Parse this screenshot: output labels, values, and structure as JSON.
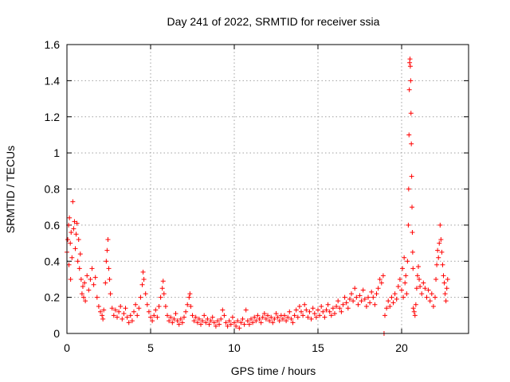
{
  "chart_data": {
    "type": "scatter",
    "title": "Day 241 of 2022, SRMTID for receiver ssia",
    "xlabel": "GPS time / hours",
    "ylabel": "SRMTID / TECUs",
    "xlim": [
      0,
      24
    ],
    "ylim": [
      0,
      1.6
    ],
    "xticks": [
      0,
      5,
      10,
      15,
      20
    ],
    "xtick_labels": [
      "0",
      "5",
      "10",
      "15",
      "20"
    ],
    "yticks": [
      0,
      0.2,
      0.4,
      0.6,
      0.8,
      1,
      1.2,
      1.4,
      1.6
    ],
    "ytick_labels": [
      "0",
      "0.2",
      "0.4",
      "0.6",
      "0.8",
      "1",
      "1.2",
      "1.4",
      "1.6"
    ],
    "grid": true,
    "marker": "+",
    "color": "#ff0000",
    "series": [
      {
        "name": "SRMTID",
        "points": [
          [
            0.0,
            0.45
          ],
          [
            0.05,
            0.52
          ],
          [
            0.1,
            0.6
          ],
          [
            0.12,
            0.38
          ],
          [
            0.15,
            0.64
          ],
          [
            0.2,
            0.5
          ],
          [
            0.22,
            0.3
          ],
          [
            0.25,
            0.56
          ],
          [
            0.3,
            0.42
          ],
          [
            0.35,
            0.73
          ],
          [
            0.4,
            0.58
          ],
          [
            0.45,
            0.62
          ],
          [
            0.5,
            0.47
          ],
          [
            0.55,
            0.55
          ],
          [
            0.6,
            0.61
          ],
          [
            0.65,
            0.4
          ],
          [
            0.7,
            0.52
          ],
          [
            0.75,
            0.36
          ],
          [
            0.8,
            0.44
          ],
          [
            0.85,
            0.3
          ],
          [
            0.9,
            0.22
          ],
          [
            0.95,
            0.26
          ],
          [
            1.0,
            0.2
          ],
          [
            1.05,
            0.28
          ],
          [
            1.1,
            0.18
          ],
          [
            1.2,
            0.32
          ],
          [
            1.3,
            0.24
          ],
          [
            1.4,
            0.3
          ],
          [
            1.5,
            0.36
          ],
          [
            1.6,
            0.27
          ],
          [
            1.7,
            0.31
          ],
          [
            1.8,
            0.2
          ],
          [
            1.9,
            0.15
          ],
          [
            2.0,
            0.12
          ],
          [
            2.1,
            0.1
          ],
          [
            2.15,
            0.08
          ],
          [
            2.2,
            0.13
          ],
          [
            2.3,
            0.28
          ],
          [
            2.35,
            0.4
          ],
          [
            2.4,
            0.46
          ],
          [
            2.45,
            0.52
          ],
          [
            2.5,
            0.36
          ],
          [
            2.55,
            0.3
          ],
          [
            2.6,
            0.22
          ],
          [
            2.7,
            0.14
          ],
          [
            2.8,
            0.1
          ],
          [
            2.9,
            0.13
          ],
          [
            3.0,
            0.09
          ],
          [
            3.1,
            0.12
          ],
          [
            3.2,
            0.15
          ],
          [
            3.3,
            0.08
          ],
          [
            3.4,
            0.11
          ],
          [
            3.5,
            0.14
          ],
          [
            3.6,
            0.09
          ],
          [
            3.7,
            0.06
          ],
          [
            3.8,
            0.1
          ],
          [
            3.9,
            0.07
          ],
          [
            4.0,
            0.12
          ],
          [
            4.1,
            0.16
          ],
          [
            4.2,
            0.1
          ],
          [
            4.3,
            0.14
          ],
          [
            4.4,
            0.2
          ],
          [
            4.5,
            0.27
          ],
          [
            4.55,
            0.34
          ],
          [
            4.6,
            0.3
          ],
          [
            4.7,
            0.22
          ],
          [
            4.8,
            0.16
          ],
          [
            4.9,
            0.12
          ],
          [
            5.0,
            0.09
          ],
          [
            5.1,
            0.07
          ],
          [
            5.2,
            0.1
          ],
          [
            5.3,
            0.13
          ],
          [
            5.4,
            0.09
          ],
          [
            5.5,
            0.15
          ],
          [
            5.6,
            0.2
          ],
          [
            5.7,
            0.25
          ],
          [
            5.75,
            0.29
          ],
          [
            5.8,
            0.22
          ],
          [
            5.9,
            0.15
          ],
          [
            6.0,
            0.1
          ],
          [
            6.1,
            0.07
          ],
          [
            6.2,
            0.09
          ],
          [
            6.3,
            0.06
          ],
          [
            6.4,
            0.08
          ],
          [
            6.5,
            0.11
          ],
          [
            6.6,
            0.07
          ],
          [
            6.7,
            0.05
          ],
          [
            6.8,
            0.08
          ],
          [
            6.9,
            0.06
          ],
          [
            7.0,
            0.09
          ],
          [
            7.1,
            0.12
          ],
          [
            7.2,
            0.16
          ],
          [
            7.3,
            0.2
          ],
          [
            7.35,
            0.22
          ],
          [
            7.4,
            0.15
          ],
          [
            7.5,
            0.1
          ],
          [
            7.6,
            0.07
          ],
          [
            7.7,
            0.09
          ],
          [
            7.8,
            0.06
          ],
          [
            7.9,
            0.08
          ],
          [
            8.0,
            0.05
          ],
          [
            8.1,
            0.07
          ],
          [
            8.2,
            0.1
          ],
          [
            8.3,
            0.06
          ],
          [
            8.4,
            0.08
          ],
          [
            8.5,
            0.05
          ],
          [
            8.6,
            0.07
          ],
          [
            8.7,
            0.09
          ],
          [
            8.8,
            0.06
          ],
          [
            8.9,
            0.04
          ],
          [
            9.0,
            0.07
          ],
          [
            9.1,
            0.05
          ],
          [
            9.2,
            0.08
          ],
          [
            9.3,
            0.13
          ],
          [
            9.4,
            0.1
          ],
          [
            9.5,
            0.06
          ],
          [
            9.6,
            0.04
          ],
          [
            9.7,
            0.07
          ],
          [
            9.8,
            0.05
          ],
          [
            9.9,
            0.09
          ],
          [
            10.0,
            0.06
          ],
          [
            10.1,
            0.04
          ],
          [
            10.2,
            0.07
          ],
          [
            10.3,
            0.03
          ],
          [
            10.4,
            0.06
          ],
          [
            10.5,
            0.08
          ],
          [
            10.6,
            0.05
          ],
          [
            10.7,
            0.13
          ],
          [
            10.8,
            0.07
          ],
          [
            10.9,
            0.05
          ],
          [
            11.0,
            0.08
          ],
          [
            11.1,
            0.06
          ],
          [
            11.2,
            0.09
          ],
          [
            11.3,
            0.07
          ],
          [
            11.4,
            0.1
          ],
          [
            11.5,
            0.08
          ],
          [
            11.6,
            0.06
          ],
          [
            11.7,
            0.09
          ],
          [
            11.8,
            0.11
          ],
          [
            11.9,
            0.08
          ],
          [
            12.0,
            0.1
          ],
          [
            12.1,
            0.07
          ],
          [
            12.2,
            0.09
          ],
          [
            12.3,
            0.06
          ],
          [
            12.4,
            0.08
          ],
          [
            12.5,
            0.11
          ],
          [
            12.6,
            0.09
          ],
          [
            12.7,
            0.07
          ],
          [
            12.8,
            0.1
          ],
          [
            12.9,
            0.08
          ],
          [
            13.0,
            0.1
          ],
          [
            13.1,
            0.07
          ],
          [
            13.2,
            0.09
          ],
          [
            13.3,
            0.12
          ],
          [
            13.4,
            0.08
          ],
          [
            13.5,
            0.06
          ],
          [
            13.6,
            0.1
          ],
          [
            13.7,
            0.13
          ],
          [
            13.8,
            0.09
          ],
          [
            13.9,
            0.15
          ],
          [
            14.0,
            0.12
          ],
          [
            14.1,
            0.1
          ],
          [
            14.2,
            0.16
          ],
          [
            14.3,
            0.13
          ],
          [
            14.4,
            0.09
          ],
          [
            14.5,
            0.12
          ],
          [
            14.6,
            0.08
          ],
          [
            14.7,
            0.14
          ],
          [
            14.8,
            0.11
          ],
          [
            14.9,
            0.09
          ],
          [
            15.0,
            0.13
          ],
          [
            15.1,
            0.1
          ],
          [
            15.2,
            0.15
          ],
          [
            15.3,
            0.12
          ],
          [
            15.4,
            0.09
          ],
          [
            15.5,
            0.13
          ],
          [
            15.6,
            0.16
          ],
          [
            15.7,
            0.12
          ],
          [
            15.8,
            0.1
          ],
          [
            15.9,
            0.14
          ],
          [
            16.0,
            0.11
          ],
          [
            16.1,
            0.15
          ],
          [
            16.2,
            0.18
          ],
          [
            16.3,
            0.14
          ],
          [
            16.4,
            0.12
          ],
          [
            16.5,
            0.16
          ],
          [
            16.6,
            0.2
          ],
          [
            16.7,
            0.17
          ],
          [
            16.8,
            0.14
          ],
          [
            16.9,
            0.19
          ],
          [
            17.0,
            0.22
          ],
          [
            17.1,
            0.18
          ],
          [
            17.2,
            0.25
          ],
          [
            17.3,
            0.2
          ],
          [
            17.4,
            0.16
          ],
          [
            17.5,
            0.21
          ],
          [
            17.6,
            0.18
          ],
          [
            17.7,
            0.24
          ],
          [
            17.8,
            0.19
          ],
          [
            17.9,
            0.15
          ],
          [
            18.0,
            0.2
          ],
          [
            18.1,
            0.17
          ],
          [
            18.2,
            0.23
          ],
          [
            18.3,
            0.2
          ],
          [
            18.4,
            0.16
          ],
          [
            18.5,
            0.22
          ],
          [
            18.6,
            0.25
          ],
          [
            18.7,
            0.3
          ],
          [
            18.8,
            0.28
          ],
          [
            18.9,
            0.32
          ],
          [
            18.95,
            0.0
          ],
          [
            19.0,
            0.1
          ],
          [
            19.1,
            0.14
          ],
          [
            19.2,
            0.18
          ],
          [
            19.3,
            0.15
          ],
          [
            19.4,
            0.2
          ],
          [
            19.5,
            0.17
          ],
          [
            19.6,
            0.22
          ],
          [
            19.7,
            0.19
          ],
          [
            19.8,
            0.26
          ],
          [
            19.9,
            0.3
          ],
          [
            20.0,
            0.24
          ],
          [
            20.05,
            0.36
          ],
          [
            20.1,
            0.2
          ],
          [
            20.15,
            0.42
          ],
          [
            20.2,
            0.28
          ],
          [
            20.25,
            0.32
          ],
          [
            20.3,
            0.22
          ],
          [
            20.35,
            0.4
          ],
          [
            20.4,
            0.6
          ],
          [
            20.42,
            0.8
          ],
          [
            20.44,
            1.1
          ],
          [
            20.46,
            1.35
          ],
          [
            20.48,
            1.5
          ],
          [
            20.5,
            1.52
          ],
          [
            20.52,
            1.48
          ],
          [
            20.54,
            1.4
          ],
          [
            20.56,
            1.22
          ],
          [
            20.58,
            1.05
          ],
          [
            20.6,
            0.87
          ],
          [
            20.62,
            0.7
          ],
          [
            20.64,
            0.56
          ],
          [
            20.66,
            0.45
          ],
          [
            20.68,
            0.36
          ],
          [
            20.7,
            0.14
          ],
          [
            20.75,
            0.12
          ],
          [
            20.8,
            0.1
          ],
          [
            20.85,
            0.16
          ],
          [
            20.9,
            0.25
          ],
          [
            20.95,
            0.32
          ],
          [
            21.0,
            0.37
          ],
          [
            21.05,
            0.3
          ],
          [
            21.1,
            0.26
          ],
          [
            21.2,
            0.22
          ],
          [
            21.3,
            0.28
          ],
          [
            21.4,
            0.25
          ],
          [
            21.5,
            0.2
          ],
          [
            21.6,
            0.24
          ],
          [
            21.7,
            0.18
          ],
          [
            21.8,
            0.22
          ],
          [
            21.9,
            0.15
          ],
          [
            22.0,
            0.2
          ],
          [
            22.05,
            0.3
          ],
          [
            22.1,
            0.38
          ],
          [
            22.15,
            0.46
          ],
          [
            22.2,
            0.42
          ],
          [
            22.25,
            0.5
          ],
          [
            22.3,
            0.6
          ],
          [
            22.35,
            0.52
          ],
          [
            22.4,
            0.45
          ],
          [
            22.45,
            0.38
          ],
          [
            22.5,
            0.32
          ],
          [
            22.55,
            0.28
          ],
          [
            22.6,
            0.22
          ],
          [
            22.65,
            0.18
          ],
          [
            22.7,
            0.25
          ],
          [
            22.75,
            0.3
          ]
        ]
      }
    ]
  }
}
